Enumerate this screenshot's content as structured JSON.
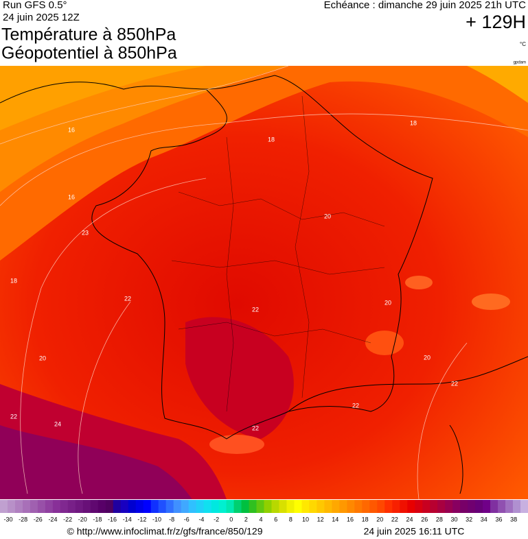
{
  "header": {
    "run": "Run GFS 0.5°",
    "date": "24 juin 2025 12Z",
    "title1": "Température à 850hPa",
    "title2": "Géopotentiel à 850hPa",
    "valid": "Echéance : dimanche 29 juin 2025 21h UTC",
    "lead": "+ 129H",
    "unit": "°C",
    "credit_small": "gpdam"
  },
  "contour_labels": [
    "16",
    "16",
    "23",
    "18",
    "22",
    "18",
    "18",
    "20",
    "22",
    "20",
    "20",
    "20",
    "22",
    "22",
    "22",
    "24",
    "22"
  ],
  "colorbar": {
    "ticks": [
      -30,
      -28,
      -26,
      -24,
      -22,
      -20,
      -18,
      -16,
      -14,
      -12,
      -10,
      -8,
      -6,
      -4,
      -2,
      0,
      2,
      4,
      6,
      8,
      10,
      12,
      14,
      16,
      18,
      20,
      22,
      24,
      26,
      28,
      30,
      32,
      34,
      36,
      38
    ],
    "colors": [
      "#c0a0d0",
      "#b890c8",
      "#b080c0",
      "#a870b8",
      "#a060b0",
      "#9850a8",
      "#9040a0",
      "#883098",
      "#802890",
      "#782088",
      "#701880",
      "#681078",
      "#600870",
      "#580068",
      "#500060",
      "#2000a0",
      "#1800c0",
      "#0000d0",
      "#0000e8",
      "#0000ff",
      "#1030ff",
      "#2050ff",
      "#3070ff",
      "#4090ff",
      "#40a8ff",
      "#30c0ff",
      "#20d0f8",
      "#10e0f0",
      "#00e8e0",
      "#00f0d0",
      "#00e8b0",
      "#00d070",
      "#00c040",
      "#30c020",
      "#60c810",
      "#90d000",
      "#b8d800",
      "#d8e000",
      "#f0f000",
      "#ffff00",
      "#ffe800",
      "#ffd800",
      "#ffc800",
      "#ffb800",
      "#ffa800",
      "#ff9800",
      "#ff8800",
      "#ff7800",
      "#ff6800",
      "#ff5800",
      "#ff4800",
      "#ff3000",
      "#f82000",
      "#f01000",
      "#e80000",
      "#d80010",
      "#c80020",
      "#b80030",
      "#a80040",
      "#980050",
      "#880060",
      "#780068",
      "#700070",
      "#680078",
      "#700088",
      "#8030a0",
      "#9050b0",
      "#a070c0",
      "#b090d0",
      "#c8b0e0"
    ]
  },
  "footer": {
    "url": "© http://www.infoclimat.fr/z/gfs/france/850/129",
    "stamp": "24 juin 2025 16:11 UTC"
  }
}
